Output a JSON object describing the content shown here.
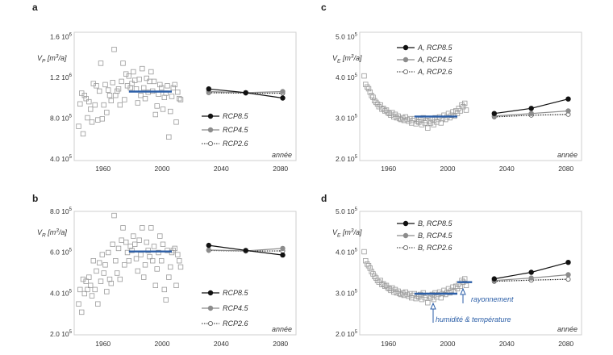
{
  "colors": {
    "frame": "#cfcfcf",
    "text": "#333333",
    "obs_marker": "#9a9a9a",
    "mean_line": "#2b5ea7",
    "rcp85": "#111111",
    "rcp45": "#8c8c8c",
    "rcp26": "#222222",
    "annotation": "#2b5ea7"
  },
  "icons": {
    "observed": "open-square-marker",
    "rcp85": "filled-black-circle",
    "rcp45": "filled-grey-circle",
    "rcp26": "open-circle-dotted-line",
    "annotation_pointer": "open-triangle-arrow"
  },
  "chart_data": [
    {
      "panel": "a",
      "type": "scatter",
      "ylabel": "V_P [m^3/a]",
      "xlabel": "année",
      "xlim": [
        1944,
        2094
      ],
      "ylim": [
        400000,
        1600000
      ],
      "xticks": [
        1960,
        2000,
        2040,
        2080
      ],
      "xtick_labels": [
        "1960",
        "2000",
        "2040",
        "2080"
      ],
      "yticks": [
        400000,
        800000,
        1200000,
        1600000
      ],
      "ytick_labels": [
        "4.0 10^5",
        "8.0 10^5",
        "1.2 10^6",
        "1.6 10^6"
      ],
      "grid": false,
      "legend_position": "right-center",
      "observed": {
        "x": [
          1947,
          1948,
          1949,
          1950,
          1951,
          1952,
          1953,
          1954,
          1955,
          1956,
          1957,
          1958,
          1959,
          1960,
          1961,
          1962,
          1963,
          1964,
          1965,
          1966,
          1967,
          1968,
          1969,
          1970,
          1971,
          1972,
          1973,
          1974,
          1975,
          1976,
          1977,
          1978,
          1979,
          1980,
          1981,
          1982,
          1983,
          1984,
          1985,
          1986,
          1987,
          1988,
          1989,
          1990,
          1991,
          1992,
          1993,
          1994,
          1995,
          1996,
          1997,
          1998,
          1999,
          2000,
          2001,
          2002,
          2003,
          2004,
          2005,
          2006,
          2007,
          2008,
          2009,
          2010,
          2011,
          2012,
          2013,
          2014,
          2015,
          2016
        ],
        "y": [
          720000,
          930000,
          1030000,
          650000,
          1010000,
          980000,
          800000,
          950000,
          880000,
          760000,
          1120000,
          920000,
          1100000,
          780000,
          1050000,
          1310000,
          790000,
          920000,
          1110000,
          850000,
          1060000,
          1010000,
          960000,
          1130000,
          1440000,
          1010000,
          1050000,
          1070000,
          920000,
          1140000,
          1310000,
          970000,
          1210000,
          1100000,
          1190000,
          1080000,
          1120000,
          1230000,
          1150000,
          1070000,
          940000,
          1160000,
          1010000,
          1260000,
          1080000,
          980000,
          1170000,
          1040000,
          1140000,
          1230000,
          1050000,
          1140000,
          830000,
          910000,
          1020000,
          1110000,
          1080000,
          880000,
          990000,
          1030000,
          1100000,
          620000,
          860000,
          1000000,
          1080000,
          1110000,
          760000,
          1040000,
          980000,
          970000
        ]
      },
      "mean": {
        "x": [
          1981,
          2010
        ],
        "y": 1045000
      },
      "series": [
        {
          "name": "RCP8.5",
          "x": [
            2035,
            2060,
            2085
          ],
          "values": [
            1070000,
            1035000,
            985000
          ]
        },
        {
          "name": "RCP4.5",
          "x": [
            2035,
            2060,
            2085
          ],
          "values": [
            1045000,
            1035000,
            1045000
          ]
        },
        {
          "name": "RCP2.6",
          "x": [
            2035,
            2060,
            2085
          ],
          "values": [
            1035000,
            1030000,
            1030000
          ]
        }
      ],
      "annotations": []
    },
    {
      "panel": "b",
      "type": "scatter",
      "ylabel": "V_R [m^3/a]",
      "xlabel": "année",
      "xlim": [
        1944,
        2094
      ],
      "ylim": [
        200000,
        800000
      ],
      "xticks": [
        1960,
        2000,
        2040,
        2080
      ],
      "xtick_labels": [
        "1960",
        "2000",
        "2040",
        "2080"
      ],
      "yticks": [
        200000,
        400000,
        600000,
        800000
      ],
      "ytick_labels": [
        "2.0 10^5",
        "4.0 10^5",
        "6.0 10^5",
        "8.0 10^5"
      ],
      "grid": false,
      "legend_position": "right-center",
      "observed": {
        "x": [
          1947,
          1948,
          1949,
          1950,
          1951,
          1952,
          1953,
          1954,
          1955,
          1956,
          1957,
          1958,
          1959,
          1960,
          1961,
          1962,
          1963,
          1964,
          1965,
          1966,
          1967,
          1968,
          1969,
          1970,
          1971,
          1972,
          1973,
          1974,
          1975,
          1976,
          1977,
          1978,
          1979,
          1980,
          1981,
          1982,
          1983,
          1984,
          1985,
          1986,
          1987,
          1988,
          1989,
          1990,
          1991,
          1992,
          1993,
          1994,
          1995,
          1996,
          1997,
          1998,
          1999,
          2000,
          2001,
          2002,
          2003,
          2004,
          2005,
          2006,
          2007,
          2008,
          2009,
          2010,
          2011,
          2012,
          2013,
          2014,
          2015,
          2016
        ],
        "y": [
          350000,
          420000,
          310000,
          470000,
          400000,
          460000,
          420000,
          480000,
          440000,
          390000,
          560000,
          420000,
          510000,
          350000,
          550000,
          460000,
          590000,
          500000,
          540000,
          410000,
          600000,
          470000,
          450000,
          640000,
          780000,
          560000,
          500000,
          620000,
          470000,
          660000,
          720000,
          540000,
          650000,
          600000,
          560000,
          630000,
          610000,
          680000,
          640000,
          570000,
          510000,
          660000,
          590000,
          720000,
          480000,
          540000,
          650000,
          610000,
          580000,
          720000,
          560000,
          630000,
          440000,
          520000,
          600000,
          680000,
          560000,
          640000,
          420000,
          370000,
          610000,
          480000,
          530000,
          600000,
          610000,
          620000,
          440000,
          590000,
          560000,
          530000
        ]
      },
      "mean": {
        "x": [
          1981,
          2010
        ],
        "y": 605000
      },
      "series": [
        {
          "name": "RCP8.5",
          "x": [
            2035,
            2060,
            2085
          ],
          "values": [
            635000,
            610000,
            588000
          ]
        },
        {
          "name": "RCP4.5",
          "x": [
            2035,
            2060,
            2085
          ],
          "values": [
            612000,
            608000,
            620000
          ]
        },
        {
          "name": "RCP2.6",
          "x": [
            2035,
            2060,
            2085
          ],
          "values": [
            610000,
            607000,
            608000
          ]
        }
      ],
      "annotations": []
    },
    {
      "panel": "c",
      "type": "scatter",
      "ylabel": "V_E [m^3/a]",
      "xlabel": "année",
      "xlim": [
        1944,
        2094
      ],
      "ylim": [
        200000,
        500000
      ],
      "xticks": [
        1960,
        2000,
        2040,
        2080
      ],
      "xtick_labels": [
        "1960",
        "2000",
        "2040",
        "2080"
      ],
      "yticks": [
        200000,
        300000,
        400000,
        500000
      ],
      "ytick_labels": [
        "2.0 10^5",
        "3.0 10^5",
        "4.0 10^5",
        "5.0 10^5"
      ],
      "grid": false,
      "legend_position": "top-left",
      "observed": {
        "x": [
          1947,
          1948,
          1949,
          1950,
          1951,
          1952,
          1953,
          1954,
          1955,
          1956,
          1957,
          1958,
          1959,
          1960,
          1961,
          1962,
          1963,
          1964,
          1965,
          1966,
          1967,
          1968,
          1969,
          1970,
          1971,
          1972,
          1973,
          1974,
          1975,
          1976,
          1977,
          1978,
          1979,
          1980,
          1981,
          1982,
          1983,
          1984,
          1985,
          1986,
          1987,
          1988,
          1989,
          1990,
          1991,
          1992,
          1993,
          1994,
          1995,
          1996,
          1997,
          1998,
          1999,
          2000,
          2001,
          2002,
          2003,
          2004,
          2005,
          2006,
          2007,
          2008,
          2009,
          2010,
          2011,
          2012,
          2013,
          2014,
          2015,
          2016
        ],
        "y": [
          398000,
          378000,
          372000,
          368000,
          360000,
          352000,
          348000,
          340000,
          336000,
          332000,
          326000,
          330000,
          320000,
          322000,
          316000,
          318000,
          312000,
          310000,
          306000,
          312000,
          302000,
          308000,
          300000,
          304000,
          298000,
          296000,
          300000,
          294000,
          302000,
          296000,
          292000,
          298000,
          288000,
          294000,
          298000,
          286000,
          292000,
          290000,
          296000,
          284000,
          300000,
          288000,
          294000,
          276000,
          292000,
          288000,
          296000,
          284000,
          300000,
          290000,
          296000,
          302000,
          288000,
          298000,
          306000,
          296000,
          302000,
          310000,
          300000,
          306000,
          314000,
          304000,
          316000,
          310000,
          322000,
          316000,
          330000,
          326000,
          334000,
          318000
        ]
      },
      "mean": {
        "x": [
          1981,
          2010
        ],
        "y": 303000
      },
      "series": [
        {
          "name": "A, RCP8.5",
          "x": [
            2035,
            2060,
            2085
          ],
          "values": [
            310000,
            322000,
            344000
          ]
        },
        {
          "name": "A, RCP4.5",
          "x": [
            2035,
            2060,
            2085
          ],
          "values": [
            304000,
            310000,
            316000
          ]
        },
        {
          "name": "A, RCP2.6",
          "x": [
            2035,
            2060,
            2085
          ],
          "values": [
            302000,
            306000,
            308000
          ]
        }
      ],
      "annotations": []
    },
    {
      "panel": "d",
      "type": "scatter",
      "ylabel": "V_E [m^3/a]",
      "xlabel": "année",
      "xlim": [
        1944,
        2094
      ],
      "ylim": [
        200000,
        500000
      ],
      "xticks": [
        1960,
        2000,
        2040,
        2080
      ],
      "xtick_labels": [
        "1960",
        "2000",
        "2040",
        "2080"
      ],
      "yticks": [
        200000,
        300000,
        400000,
        500000
      ],
      "ytick_labels": [
        "2.0 10^5",
        "3.0 10^5",
        "4.0 10^5",
        "5.0 10^5"
      ],
      "grid": false,
      "legend_position": "top-left",
      "observed": {
        "x": [
          1947,
          1948,
          1949,
          1950,
          1951,
          1952,
          1953,
          1954,
          1955,
          1956,
          1957,
          1958,
          1959,
          1960,
          1961,
          1962,
          1963,
          1964,
          1965,
          1966,
          1967,
          1968,
          1969,
          1970,
          1971,
          1972,
          1973,
          1974,
          1975,
          1976,
          1977,
          1978,
          1979,
          1980,
          1981,
          1982,
          1983,
          1984,
          1985,
          1986,
          1987,
          1988,
          1989,
          1990,
          1991,
          1992,
          1993,
          1994,
          1995,
          1996,
          1997,
          1998,
          1999,
          2000,
          2001,
          2002,
          2003,
          2004,
          2005,
          2006,
          2007,
          2008,
          2009,
          2010,
          2011,
          2012,
          2013,
          2014,
          2015,
          2016
        ],
        "y": [
          402000,
          380000,
          372000,
          368000,
          362000,
          354000,
          348000,
          342000,
          338000,
          332000,
          328000,
          332000,
          322000,
          324000,
          318000,
          320000,
          314000,
          312000,
          308000,
          314000,
          304000,
          310000,
          302000,
          306000,
          300000,
          298000,
          302000,
          296000,
          304000,
          298000,
          294000,
          300000,
          290000,
          296000,
          300000,
          288000,
          294000,
          292000,
          298000,
          286000,
          302000,
          290000,
          296000,
          278000,
          294000,
          290000,
          298000,
          286000,
          302000,
          292000,
          298000,
          304000,
          290000,
          300000,
          308000,
          298000,
          304000,
          312000,
          302000,
          308000,
          316000,
          306000,
          318000,
          312000,
          324000,
          318000,
          332000,
          328000,
          336000,
          320000
        ]
      },
      "mean": {
        "x": [
          1981,
          2010
        ],
        "y": 300000
      },
      "mean_adjusted": {
        "x": [
          2010,
          2020
        ],
        "y": 328000
      },
      "series": [
        {
          "name": "B, RCP8.5",
          "x": [
            2035,
            2060,
            2085
          ],
          "values": [
            336000,
            352000,
            376000
          ]
        },
        {
          "name": "B, RCP4.5",
          "x": [
            2035,
            2060,
            2085
          ],
          "values": [
            332000,
            338000,
            346000
          ]
        },
        {
          "name": "B, RCP2.6",
          "x": [
            2035,
            2060,
            2085
          ],
          "values": [
            330000,
            333000,
            335000
          ]
        }
      ],
      "annotations": [
        {
          "text": "rayonnement",
          "x": 2020,
          "y": 312000
        },
        {
          "text": "humidité & température",
          "x": 1992,
          "y": 286000
        }
      ]
    }
  ],
  "panels": [
    {
      "letter": "a",
      "ylabel_main": "V",
      "ylabel_sub": "P",
      "ylabel_unit_pre": " [m",
      "ylabel_unit_sup": "3",
      "ylabel_unit_post": "/a]",
      "xlabel": "année",
      "yticks": [
        {
          "mant": "4.0 10",
          "exp": "5"
        },
        {
          "mant": "8.0 10",
          "exp": "5"
        },
        {
          "mant": "1.2 10",
          "exp": "6"
        },
        {
          "mant": "1.6 10",
          "exp": "6"
        }
      ],
      "xticks": [
        "1960",
        "2000",
        "2040",
        "2080"
      ],
      "legend": [
        "RCP8.5",
        "RCP4.5",
        "RCP2.6"
      ]
    },
    {
      "letter": "b",
      "ylabel_main": "V",
      "ylabel_sub": "R",
      "ylabel_unit_pre": " [m",
      "ylabel_unit_sup": "3",
      "ylabel_unit_post": "/a]",
      "xlabel": "année",
      "yticks": [
        {
          "mant": "2.0 10",
          "exp": "5"
        },
        {
          "mant": "4.0 10",
          "exp": "5"
        },
        {
          "mant": "6.0 10",
          "exp": "5"
        },
        {
          "mant": "8.0 10",
          "exp": "5"
        }
      ],
      "xticks": [
        "1960",
        "2000",
        "2040",
        "2080"
      ],
      "legend": [
        "RCP8.5",
        "RCP4.5",
        "RCP2.6"
      ]
    },
    {
      "letter": "c",
      "ylabel_main": "V",
      "ylabel_sub": "E",
      "ylabel_unit_pre": " [m",
      "ylabel_unit_sup": "3",
      "ylabel_unit_post": "/a]",
      "xlabel": "année",
      "yticks": [
        {
          "mant": "2.0 10",
          "exp": "5"
        },
        {
          "mant": "3.0 10",
          "exp": "5"
        },
        {
          "mant": "4.0 10",
          "exp": "5"
        },
        {
          "mant": "5.0 10",
          "exp": "5"
        }
      ],
      "xticks": [
        "1960",
        "2000",
        "2040",
        "2080"
      ],
      "legend": [
        "A, RCP8.5",
        "A, RCP4.5",
        "A, RCP2.6"
      ]
    },
    {
      "letter": "d",
      "ylabel_main": "V",
      "ylabel_sub": "E",
      "ylabel_unit_pre": " [m",
      "ylabel_unit_sup": "3",
      "ylabel_unit_post": "/a]",
      "xlabel": "année",
      "yticks": [
        {
          "mant": "2.0 10",
          "exp": "5"
        },
        {
          "mant": "3.0 10",
          "exp": "5"
        },
        {
          "mant": "4.0 10",
          "exp": "5"
        },
        {
          "mant": "5.0 10",
          "exp": "5"
        }
      ],
      "xticks": [
        "1960",
        "2000",
        "2040",
        "2080"
      ],
      "legend": [
        "B, RCP8.5",
        "B, RCP4.5",
        "B, RCP2.6"
      ],
      "annotations": [
        "rayonnement",
        "humidité & température"
      ]
    }
  ]
}
